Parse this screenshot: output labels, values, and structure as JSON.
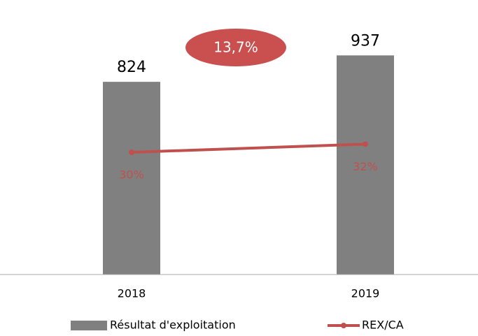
{
  "chart_data": {
    "type": "bar_line",
    "categories": [
      "2018",
      "2019"
    ],
    "series": [
      {
        "name": "Résultat d'exploitation",
        "type": "bar",
        "color": "#808080",
        "values": [
          824,
          937
        ]
      },
      {
        "name": "REX/CA",
        "type": "line",
        "color": "#c0504d",
        "axis": "y2",
        "values": [
          30,
          32
        ],
        "value_labels": [
          "30%",
          "32%"
        ]
      }
    ],
    "ylim": [
      0,
      1150
    ],
    "y2lim": [
      0,
      66
    ],
    "annotation": "13,7%",
    "legend": "bottom"
  }
}
